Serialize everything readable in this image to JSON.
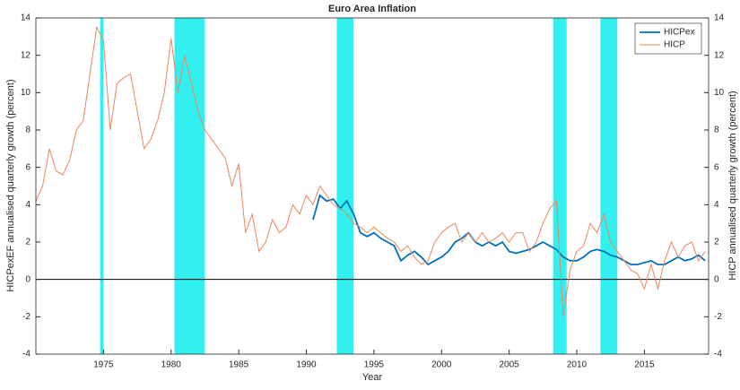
{
  "chart_data": {
    "type": "line",
    "title": "Euro Area Inflation",
    "x_label": "Year",
    "y_label": "HICPexEF annualised quarterly growth (percent)",
    "y2_label": "HICP annualised quarterly growth (percent)",
    "x": [
      1970,
      1970.5,
      1971,
      1971.5,
      1972,
      1972.5,
      1973,
      1973.5,
      1974,
      1974.5,
      1975,
      1975.5,
      1976,
      1976.5,
      1977,
      1977.5,
      1978,
      1978.5,
      1979,
      1979.5,
      1980,
      1980.5,
      1981,
      1981.5,
      1982,
      1982.5,
      1983,
      1983.5,
      1984,
      1984.5,
      1985,
      1985.5,
      1986,
      1986.5,
      1987,
      1987.5,
      1988,
      1988.5,
      1989,
      1989.5,
      1990,
      1990.5,
      1991,
      1991.5,
      1992,
      1992.5,
      1993,
      1993.5,
      1994,
      1994.5,
      1995,
      1995.5,
      1996,
      1996.5,
      1997,
      1997.5,
      1998,
      1998.5,
      1999,
      1999.5,
      2000,
      2000.5,
      2001,
      2001.5,
      2002,
      2002.5,
      2003,
      2003.5,
      2004,
      2004.5,
      2005,
      2005.5,
      2006,
      2006.5,
      2007,
      2007.5,
      2008,
      2008.5,
      2009,
      2009.5,
      2010,
      2010.5,
      2011,
      2011.5,
      2012,
      2012.5,
      2013,
      2013.5,
      2014,
      2014.5,
      2015,
      2015.5,
      2016,
      2016.5,
      2017,
      2017.5,
      2018,
      2018.5,
      2019,
      2019.5
    ],
    "series": [
      {
        "name": "HICPex",
        "color": "#0072bd",
        "axis": "y",
        "values": [
          null,
          null,
          null,
          null,
          null,
          null,
          null,
          null,
          null,
          null,
          null,
          null,
          null,
          null,
          null,
          null,
          null,
          null,
          null,
          null,
          null,
          null,
          null,
          null,
          null,
          null,
          null,
          null,
          null,
          null,
          null,
          null,
          null,
          null,
          null,
          null,
          null,
          null,
          null,
          null,
          null,
          3.2,
          4.5,
          4.2,
          4.3,
          3.8,
          4.2,
          3.5,
          2.5,
          2.3,
          2.5,
          2.2,
          2.0,
          1.8,
          1.0,
          1.3,
          1.5,
          1.2,
          0.8,
          1.0,
          1.2,
          1.5,
          2.0,
          2.2,
          2.5,
          2.0,
          1.8,
          2.0,
          1.8,
          2.0,
          1.5,
          1.4,
          1.5,
          1.6,
          1.8,
          2.0,
          1.8,
          1.6,
          1.2,
          1.0,
          1.0,
          1.2,
          1.5,
          1.6,
          1.5,
          1.3,
          1.2,
          1.0,
          0.8,
          0.8,
          0.9,
          1.0,
          0.8,
          0.8,
          1.0,
          1.2,
          1.0,
          1.1,
          1.3,
          1.0
        ]
      },
      {
        "name": "HICP",
        "color": "#f0845a",
        "axis": "y2",
        "values": [
          4.2,
          5.0,
          7.0,
          5.8,
          5.6,
          6.4,
          8.0,
          8.5,
          11.0,
          13.5,
          12.8,
          8.0,
          10.5,
          10.8,
          11.0,
          9.0,
          7.0,
          7.5,
          8.5,
          10.0,
          12.9,
          10.0,
          12.0,
          10.5,
          9.0,
          8.0,
          7.5,
          7.0,
          6.5,
          5.0,
          6.2,
          2.5,
          3.5,
          1.5,
          2.0,
          3.2,
          2.5,
          2.8,
          4.0,
          3.5,
          4.5,
          4.0,
          5.0,
          4.5,
          4.0,
          3.8,
          3.5,
          3.0,
          2.8,
          2.5,
          2.8,
          2.5,
          2.2,
          2.0,
          1.5,
          1.8,
          1.2,
          0.8,
          1.0,
          2.0,
          2.5,
          2.8,
          3.0,
          2.0,
          2.5,
          2.0,
          2.5,
          2.0,
          2.2,
          2.5,
          2.0,
          2.5,
          2.5,
          1.5,
          2.0,
          3.0,
          3.8,
          4.2,
          -2.0,
          0.5,
          1.5,
          1.8,
          3.0,
          2.5,
          3.5,
          2.0,
          1.5,
          1.0,
          0.5,
          0.3,
          -0.5,
          0.8,
          -0.5,
          1.0,
          2.0,
          1.2,
          1.8,
          2.0,
          1.0,
          1.5
        ]
      }
    ],
    "shaded_periods": [
      [
        1974.75,
        1975.0
      ],
      [
        1980.25,
        1982.5
      ],
      [
        1992.25,
        1993.5
      ],
      [
        2008.25,
        2009.25
      ],
      [
        2011.75,
        2013.0
      ]
    ],
    "shade_color": "#33f0f0",
    "reference_line": 0,
    "xlim": [
      1970,
      2019.75
    ],
    "xticks": [
      1975,
      1980,
      1985,
      1990,
      1995,
      2000,
      2005,
      2010,
      2015
    ],
    "ylim": [
      -4,
      14
    ],
    "yticks": [
      -4,
      -2,
      0,
      2,
      4,
      6,
      8,
      10,
      12,
      14
    ],
    "y2lim": [
      -4,
      14
    ],
    "y2ticks": [
      -4,
      -2,
      0,
      2,
      4,
      6,
      8,
      10,
      12,
      14
    ],
    "legend": "upper right"
  }
}
